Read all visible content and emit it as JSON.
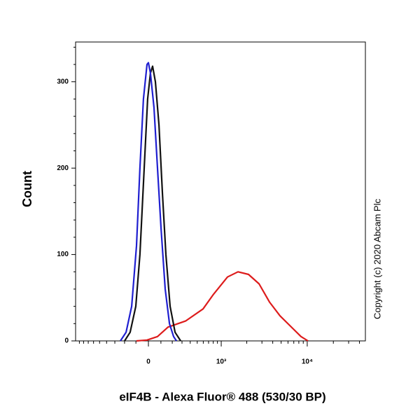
{
  "chart_data": {
    "type": "line",
    "x_label": "eIF4B - Alexa Fluor® 488 (530/30 BP)",
    "y_label": "Count",
    "annotation": "Copyright (c) 2020 Abcam Plc",
    "xscale": "biexponential",
    "xlim": [
      -1000,
      46800
    ],
    "xticks": [
      0,
      {
        "value": 1000,
        "label": "10³"
      },
      {
        "value": 10000,
        "label": "10⁴"
      }
    ],
    "xminor_ticks": [
      -900,
      -800,
      -700,
      -600,
      -500,
      -400,
      -300,
      -200,
      -100,
      100,
      200,
      300,
      400,
      500,
      600,
      700,
      800,
      900,
      2000,
      3000,
      4000,
      5000,
      6000,
      7000,
      8000,
      9000,
      20000,
      30000,
      40000
    ],
    "ylim": [
      0,
      346
    ],
    "yticks": [
      0,
      100,
      200,
      300
    ],
    "yminor_ticks": [
      20,
      40,
      60,
      80,
      120,
      140,
      160,
      180,
      220,
      240,
      260,
      280,
      320,
      340
    ],
    "series": [
      {
        "color": "#1f1fd0",
        "x": [
          -241,
          -186,
          -136,
          -95,
          -67,
          -39,
          -11,
          0,
          16,
          44,
          72,
          101,
          136,
          174,
          213,
          241
        ],
        "values": [
          0,
          10,
          40,
          110,
          200,
          280,
          320,
          322,
          310,
          270,
          200,
          130,
          60,
          20,
          5,
          0
        ]
      },
      {
        "color": "#111111",
        "x": [
          -200,
          -149,
          -101,
          -67,
          -33,
          -6,
          16,
          33,
          55,
          84,
          113,
          142,
          180,
          227,
          285
        ],
        "values": [
          0,
          10,
          40,
          100,
          200,
          280,
          310,
          318,
          300,
          250,
          170,
          100,
          40,
          10,
          0
        ]
      },
      {
        "color": "#dd1c1c",
        "x": [
          -95,
          -11,
          72,
          161,
          341,
          596,
          806,
          1189,
          1579,
          2097,
          2777,
          3673,
          4854,
          6417,
          8475,
          10210
        ],
        "values": [
          0,
          1,
          5,
          16,
          23,
          37,
          54,
          74,
          80,
          77,
          66,
          45,
          29,
          17,
          5,
          0
        ]
      }
    ]
  }
}
